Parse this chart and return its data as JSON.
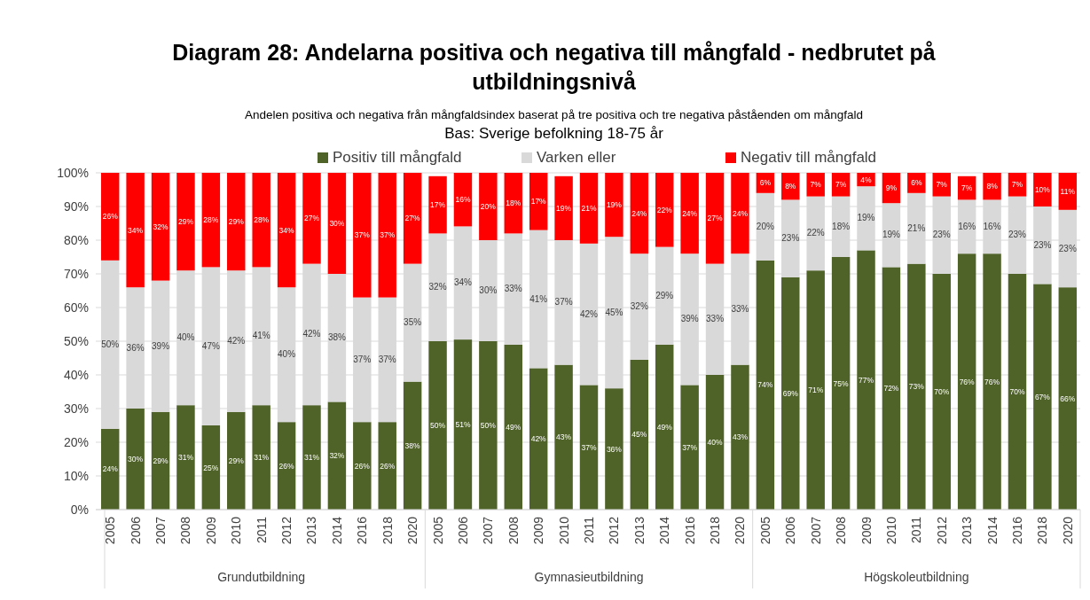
{
  "chart_data": {
    "type": "bar",
    "stacked": true,
    "title": "Diagram 28: Andelarna positiva och negativa till mångfald - nedbrutet på utbildningsnivå",
    "subtitle": "Andelen positiva och negativa från mångfaldsindex baserat på tre positiva och tre negativa påståenden om mångfald\nBas: Sverige befolkning 18-75 år",
    "categories": [
      "2005",
      "2006",
      "2007",
      "2008",
      "2009",
      "2010",
      "2011",
      "2012",
      "2013",
      "2014",
      "2016",
      "2018",
      "2020",
      "2005",
      "2006",
      "2007",
      "2008",
      "2009",
      "2010",
      "2011",
      "2012",
      "2013",
      "2014",
      "2016",
      "2018",
      "2020",
      "2005",
      "2006",
      "2007",
      "2008",
      "2009",
      "2010",
      "2011",
      "2012",
      "2013",
      "2014",
      "2016",
      "2018",
      "2020"
    ],
    "annotations": [
      "Grundutbildning",
      "Gymnasieutbildning",
      "Högskoleutbildning"
    ],
    "series": [
      {
        "name": "Positiv till mångfald",
        "color": "#4f6228",
        "values": [
          24,
          30,
          29,
          31,
          25,
          29,
          31,
          26,
          31,
          32,
          26,
          26,
          38,
          50,
          50.5,
          50,
          49,
          42,
          43,
          37,
          36,
          44.5,
          49,
          37,
          40,
          43,
          74,
          69,
          71,
          75,
          77,
          72,
          73,
          70,
          76,
          76,
          70,
          67,
          66
        ],
        "value_labels": [
          "24%",
          "30%",
          "29%",
          "31%",
          "25%",
          "29%",
          "31%",
          "26%",
          "31%",
          "32%",
          "26%",
          "26%",
          "38%",
          "50%",
          "51%",
          "50%",
          "49%",
          "42%",
          "43%",
          "37%",
          "36%",
          "45%",
          "49%",
          "37%",
          "40%",
          "43%",
          "74%",
          "69%",
          "71%",
          "75%",
          "77%",
          "72%",
          "73%",
          "70%",
          "76%",
          "76%",
          "70%",
          "67%",
          "66%"
        ]
      },
      {
        "name": "Varken eller",
        "color": "#d9d9d9",
        "values": [
          50,
          36,
          39,
          40,
          47,
          42,
          41,
          40,
          42,
          38,
          37,
          37,
          35,
          32,
          33.6,
          30,
          33,
          41,
          37,
          42,
          45,
          31.5,
          29,
          39,
          33,
          33,
          20,
          23,
          22,
          18,
          19,
          19,
          21,
          23,
          16,
          16,
          23,
          23,
          23
        ],
        "value_labels": [
          "50%",
          "36%",
          "39%",
          "40%",
          "47%",
          "42%",
          "41%",
          "40%",
          "42%",
          "38%",
          "37%",
          "37%",
          "35%",
          "32%",
          "34%",
          "30%",
          "33%",
          "41%",
          "37%",
          "42%",
          "45%",
          "32%",
          "29%",
          "39%",
          "33%",
          "33%",
          "20%",
          "23%",
          "22%",
          "18%",
          "19%",
          "19%",
          "21%",
          "23%",
          "16%",
          "16%",
          "23%",
          "23%",
          "23%"
        ]
      },
      {
        "name": "Negativ till mångfald",
        "color": "#ff0000",
        "values": [
          26,
          34,
          32,
          29,
          28,
          29,
          28,
          34,
          27,
          30,
          37,
          37,
          27,
          17,
          15.9,
          20,
          18,
          17,
          19,
          21,
          19,
          24,
          22,
          24,
          27,
          24,
          6,
          8,
          7,
          7,
          4,
          9,
          6,
          7,
          7,
          8,
          7,
          10,
          11
        ],
        "value_labels": [
          "26%",
          "34%",
          "32%",
          "29%",
          "28%",
          "29%",
          "28%",
          "34%",
          "27%",
          "30%",
          "37%",
          "37%",
          "27%",
          "17%",
          "16%",
          "20%",
          "18%",
          "17%",
          "19%",
          "21%",
          "19%",
          "24%",
          "22%",
          "24%",
          "27%",
          "24%",
          "6%",
          "8%",
          "7%",
          "7%",
          "4%",
          "9%",
          "6%",
          "7%",
          "7%",
          "8%",
          "7%",
          "10%",
          "11%"
        ]
      }
    ],
    "ylim": [
      0,
      100
    ],
    "yticks": [
      {
        "value": 0,
        "label": "0%"
      },
      {
        "value": 10,
        "label": "10%"
      },
      {
        "value": 20,
        "label": "20%"
      },
      {
        "value": 30,
        "label": "30%"
      },
      {
        "value": 40,
        "label": "40%"
      },
      {
        "value": 50,
        "label": "50%"
      },
      {
        "value": 60,
        "label": "60%"
      },
      {
        "value": 70,
        "label": "70%"
      },
      {
        "value": 80,
        "label": "80%"
      },
      {
        "value": 90,
        "label": "90%"
      },
      {
        "value": 100,
        "label": "100%"
      }
    ],
    "grid": "y",
    "legend": "top"
  }
}
